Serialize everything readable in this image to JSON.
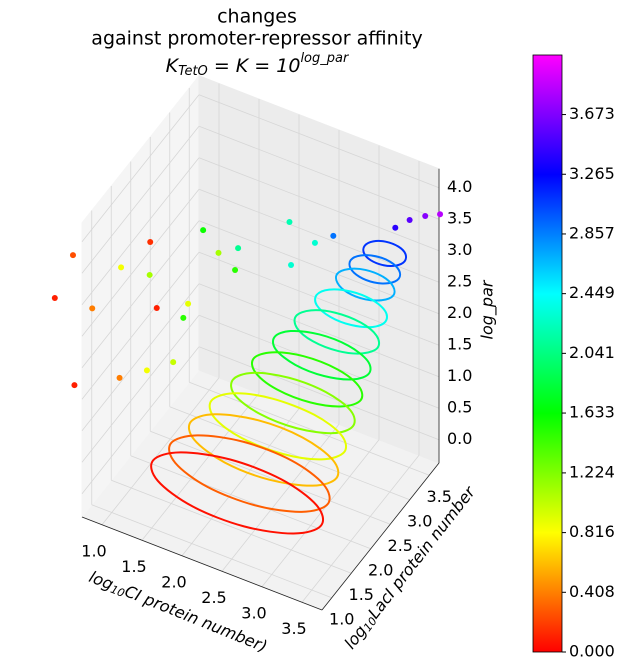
{
  "chart_data": {
    "type": "scatter3d",
    "title": [
      "changes",
      "against promoter-repressor affinity"
    ],
    "title_math": {
      "base": "K",
      "sub": "TetO",
      "mid": " = K = 10",
      "sup": "log_par"
    },
    "xlabel": {
      "base": "log",
      "sub": "10",
      "rest": "CI protein number)"
    },
    "ylabel": {
      "base": "log",
      "sub": "10",
      "rest": "LacI protein number"
    },
    "zlabel": "log_par",
    "xlim": [
      0.75,
      3.75
    ],
    "ylim": [
      0.75,
      3.75
    ],
    "zlim": [
      -0.37,
      4.3
    ],
    "xticks": [
      {
        "value": 1,
        "label": "1.0"
      },
      1.5,
      {
        "value": 2,
        "label": "2.0"
      },
      2.5,
      {
        "value": 3,
        "label": "3.0"
      },
      3.5
    ],
    "yticks": [
      {
        "value": 1,
        "label": "1.0"
      },
      1.5,
      {
        "value": 2,
        "label": "2.0"
      },
      2.5,
      {
        "value": 3,
        "label": "3.0"
      },
      3.5
    ],
    "zticks": [
      {
        "value": 0,
        "label": "0.0"
      },
      0.5,
      {
        "value": 1,
        "label": "1.0"
      },
      1.5,
      {
        "value": 2,
        "label": "2.0"
      },
      2.5,
      {
        "value": 3,
        "label": "3.0"
      },
      3.5,
      {
        "value": 4,
        "label": "4.0"
      }
    ],
    "grid": true,
    "colormap": [
      "#ff0000",
      "#ffff00",
      "#00ff00",
      "#00ffff",
      "#0000ff",
      "#ff00ff"
    ],
    "clim": [
      0,
      4.08
    ],
    "cticks": [
      {
        "value": 0,
        "label": "0.000"
      },
      0.408,
      0.816,
      1.224,
      1.633,
      2.041,
      2.449,
      2.857,
      3.265,
      3.673
    ],
    "loops": [
      {
        "z": 0.05,
        "x": [
          3.3,
          3.1,
          2.57,
          1.93,
          1.4,
          1.2,
          1.4,
          1.93,
          2.57,
          3.1
        ],
        "y": [
          1.65,
          1.94,
          2.13,
          2.13,
          1.94,
          1.65,
          1.36,
          1.17,
          1.17,
          1.36
        ]
      },
      {
        "z": 0.3,
        "x": [
          3.32,
          3.13,
          2.64,
          2.04,
          1.55,
          1.36,
          1.55,
          2.04,
          2.64,
          3.13
        ],
        "y": [
          1.78,
          2.06,
          2.24,
          2.24,
          2.06,
          1.78,
          1.5,
          1.32,
          1.32,
          1.5
        ]
      },
      {
        "z": 0.6,
        "x": [
          3.35,
          3.18,
          2.72,
          2.16,
          1.7,
          1.53,
          1.7,
          2.16,
          2.72,
          3.18
        ],
        "y": [
          1.94,
          2.2,
          2.37,
          2.37,
          2.2,
          1.94,
          1.68,
          1.51,
          1.51,
          1.68
        ]
      },
      {
        "z": 0.9,
        "x": [
          3.37,
          3.21,
          2.8,
          2.28,
          1.87,
          1.71,
          1.87,
          2.28,
          2.8,
          3.21
        ],
        "y": [
          2.1,
          2.35,
          2.5,
          2.5,
          2.35,
          2.1,
          1.85,
          1.7,
          1.7,
          1.85
        ]
      },
      {
        "z": 1.2,
        "x": [
          3.4,
          3.26,
          2.88,
          2.42,
          2.04,
          1.9,
          2.04,
          2.42,
          2.88,
          3.26
        ],
        "y": [
          2.26,
          2.49,
          2.63,
          2.63,
          2.49,
          2.26,
          2.03,
          1.89,
          1.89,
          2.03
        ]
      },
      {
        "z": 1.5,
        "x": [
          3.42,
          3.29,
          2.96,
          2.54,
          2.21,
          2.08,
          2.21,
          2.54,
          2.96,
          3.29
        ],
        "y": [
          2.42,
          2.63,
          2.76,
          2.76,
          2.63,
          2.42,
          2.21,
          2.08,
          2.08,
          2.21
        ]
      },
      {
        "z": 1.8,
        "x": [
          3.44,
          3.33,
          3.03,
          2.67,
          2.37,
          2.26,
          2.37,
          2.67,
          3.03,
          3.33
        ],
        "y": [
          2.59,
          2.78,
          2.9,
          2.9,
          2.78,
          2.59,
          2.4,
          2.28,
          2.28,
          2.4
        ]
      },
      {
        "z": 2.1,
        "x": [
          3.47,
          3.37,
          3.12,
          2.8,
          2.55,
          2.45,
          2.55,
          2.8,
          3.12,
          3.37
        ],
        "y": [
          2.75,
          2.93,
          3.04,
          3.04,
          2.93,
          2.75,
          2.57,
          2.46,
          2.46,
          2.57
        ]
      },
      {
        "z": 2.4,
        "x": [
          3.49,
          3.41,
          3.19,
          2.93,
          2.71,
          2.63,
          2.71,
          2.93,
          3.19,
          3.41
        ],
        "y": [
          2.91,
          3.07,
          3.17,
          3.17,
          3.07,
          2.91,
          2.75,
          2.65,
          2.65,
          2.75
        ]
      },
      {
        "z": 2.7,
        "x": [
          3.51,
          3.44,
          3.27,
          3.05,
          2.88,
          2.81,
          2.88,
          3.05,
          3.27,
          3.44
        ],
        "y": [
          3.07,
          3.21,
          3.3,
          3.3,
          3.21,
          3.07,
          2.93,
          2.84,
          2.84,
          2.93
        ]
      },
      {
        "z": 2.9,
        "x": [
          3.53,
          3.47,
          3.32,
          3.14,
          2.99,
          2.93,
          2.99,
          3.14,
          3.32,
          3.47
        ],
        "y": [
          3.17,
          3.3,
          3.38,
          3.38,
          3.3,
          3.17,
          3.04,
          2.96,
          2.96,
          3.04
        ]
      },
      {
        "z": 3.1,
        "x": [
          3.55,
          3.5,
          3.38,
          3.22,
          3.1,
          3.05,
          3.1,
          3.22,
          3.38,
          3.5
        ],
        "y": [
          3.28,
          3.4,
          3.47,
          3.47,
          3.4,
          3.28,
          3.16,
          3.09,
          3.09,
          3.16
        ]
      }
    ],
    "points": {
      "x": [
        -0.95,
        -0.1,
        -1.03,
        -0.37,
        0.42,
        -0.44,
        -0.19,
        0.84,
        0.26,
        0.1,
        0.75,
        1.1,
        1.1,
        0.67,
        0.75,
        1.23,
        1.38,
        1.72,
        2.17,
        2.58,
        2.11,
        3.35,
        3.5,
        3.69,
        3.89
      ],
      "y": [
        3.54,
        2.3,
        4.17,
        3.31,
        2.39,
        4.94,
        3.68,
        2.23,
        3.49,
        4.0,
        3.47,
        2.63,
        2.37,
        4.02,
        4.25,
        3.69,
        3.46,
        4.08,
        3.81,
        3.44,
        3.32,
        3.45,
        3.51,
        3.52,
        3.49
      ],
      "z": [
        0.1,
        0.1,
        0.25,
        0.4,
        0.4,
        0.15,
        0.85,
        0.85,
        1.1,
        0.1,
        0.9,
        1.5,
        1.0,
        1.6,
        1.1,
        1.5,
        2.1,
        2.2,
        2.3,
        2.9,
        2.3,
        3.4,
        3.55,
        3.7,
        3.85
      ]
    }
  }
}
